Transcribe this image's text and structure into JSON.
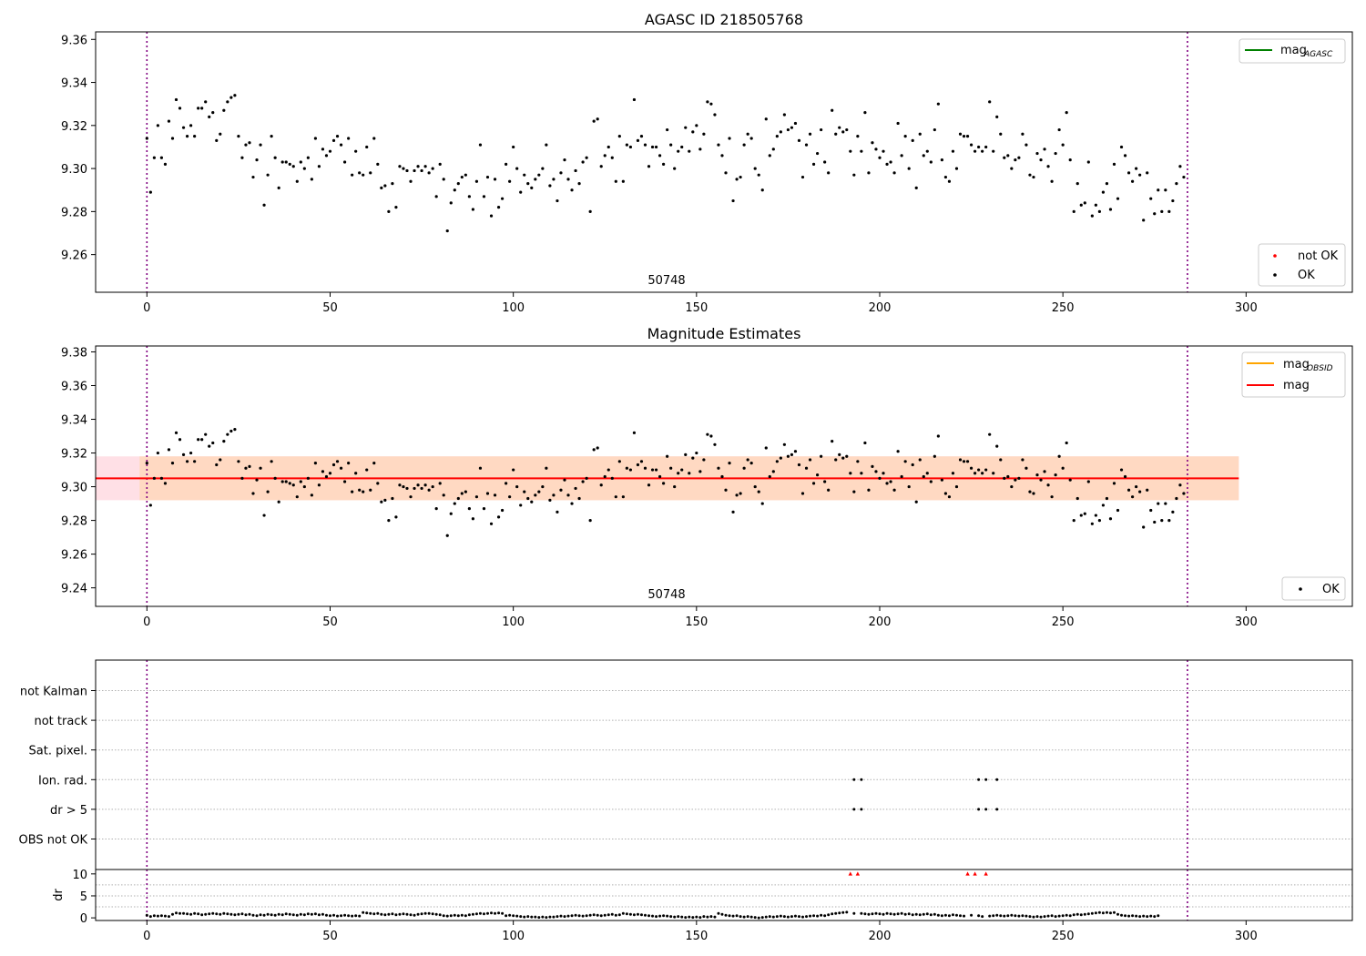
{
  "chart_data": [
    {
      "type": "scatter",
      "title": "AGASC ID 218505768",
      "xlim": [
        -14,
        329
      ],
      "ylim": [
        9.2425,
        9.3635
      ],
      "xticks": [
        0,
        50,
        100,
        150,
        200,
        250,
        300
      ],
      "yticks": [
        9.26,
        9.28,
        9.3,
        9.32,
        9.34,
        9.36
      ],
      "annotation": "50748",
      "vlines": [
        0,
        284
      ],
      "legend_lines": [
        {
          "label": "mag",
          "subscript": "AGASC",
          "color": "#008000"
        }
      ],
      "legend_points": [
        {
          "label": "not OK",
          "color": "#ff0000"
        },
        {
          "label": "OK",
          "color": "#000000"
        }
      ],
      "series": [
        {
          "key": "mag_points",
          "values": [
            9.314,
            9.289,
            9.305,
            9.32,
            9.305,
            9.302,
            9.322,
            9.314,
            9.332,
            9.328,
            9.319,
            9.315,
            9.32,
            9.315,
            9.328,
            9.328,
            9.331,
            9.324,
            9.326,
            9.313,
            9.316,
            9.327,
            9.331,
            9.333,
            9.334,
            9.315,
            9.305,
            9.311,
            9.312,
            9.296,
            9.304,
            9.311,
            9.283,
            9.297,
            9.315,
            9.305,
            9.291,
            9.303,
            9.303,
            9.302,
            9.301,
            9.294,
            9.303,
            9.3,
            9.305,
            9.295,
            9.314,
            9.301,
            9.309,
            9.306,
            9.308,
            9.313,
            9.315,
            9.311,
            9.303,
            9.314,
            9.297,
            9.308,
            9.298,
            9.297,
            9.31,
            9.298,
            9.314,
            9.302,
            9.291,
            9.292,
            9.28,
            9.293,
            9.282,
            9.301,
            9.3,
            9.299,
            9.294,
            9.299,
            9.301,
            9.299,
            9.301,
            9.298,
            9.3,
            9.287,
            9.302,
            9.295,
            9.271,
            9.284,
            9.29,
            9.293,
            9.296,
            9.297,
            9.287,
            9.281,
            9.294,
            9.311,
            9.287,
            9.296,
            9.278,
            9.295,
            9.282,
            9.286,
            9.302,
            9.294,
            9.31,
            9.3,
            9.289,
            9.297,
            9.293,
            9.291,
            9.295,
            9.297,
            9.3,
            9.311,
            9.292,
            9.295,
            9.285,
            9.298,
            9.304,
            9.295,
            9.29,
            9.299,
            9.293,
            9.303,
            9.305,
            9.28,
            9.322,
            9.323,
            9.301,
            9.306,
            9.31,
            9.305,
            9.294,
            9.315,
            9.294,
            9.311,
            9.31,
            9.332,
            9.313,
            9.315,
            9.311,
            9.301,
            9.31,
            9.31,
            9.306,
            9.302,
            9.318,
            9.311,
            9.3,
            9.308,
            9.31,
            9.319,
            9.308,
            9.317,
            9.32,
            9.309,
            9.316,
            9.331,
            9.33,
            9.325,
            9.311,
            9.306,
            9.298,
            9.314,
            9.285,
            9.295,
            9.296,
            9.311,
            9.316,
            9.314,
            9.3,
            9.297,
            9.29,
            9.323,
            9.306,
            9.309,
            9.315,
            9.317,
            9.325,
            9.318,
            9.319,
            9.321,
            9.313,
            9.296,
            9.311,
            9.316,
            9.302,
            9.307,
            9.318,
            9.303,
            9.298,
            9.327,
            9.316,
            9.319,
            9.317,
            9.318,
            9.308,
            9.297,
            9.315,
            9.308,
            9.326,
            9.298,
            9.312,
            9.309,
            9.305,
            9.308,
            9.302,
            9.303,
            9.298,
            9.321,
            9.306,
            9.315,
            9.3,
            9.313,
            9.291,
            9.316,
            9.306,
            9.308,
            9.303,
            9.318,
            9.33,
            9.304,
            9.296,
            9.294,
            9.308,
            9.3,
            9.316,
            9.315,
            9.315,
            9.311,
            9.308,
            9.31,
            9.308,
            9.31,
            9.331,
            9.308,
            9.324,
            9.316,
            9.305,
            9.306,
            9.3,
            9.304,
            9.305,
            9.316,
            9.311,
            9.297,
            9.296,
            9.307,
            9.304,
            9.309,
            9.301,
            9.294,
            9.307,
            9.318,
            9.311,
            9.326,
            9.304,
            9.28,
            9.293,
            9.283,
            9.284,
            9.303,
            9.278,
            9.283,
            9.28,
            9.289,
            9.293,
            9.281,
            9.302,
            9.286,
            9.31,
            9.306,
            9.298,
            9.294,
            9.3,
            9.297,
            9.276,
            9.298,
            9.286,
            9.279,
            9.29,
            9.28,
            9.29,
            9.28,
            9.285,
            9.293,
            9.301,
            9.296
          ]
        }
      ]
    },
    {
      "type": "scatter",
      "title": "Magnitude Estimates",
      "xlim": [
        -14,
        329
      ],
      "ylim": [
        9.229,
        9.3835
      ],
      "xticks": [
        0,
        50,
        100,
        150,
        200,
        250,
        300
      ],
      "yticks": [
        9.24,
        9.26,
        9.28,
        9.3,
        9.32,
        9.34,
        9.36,
        9.38
      ],
      "annotation": "50748",
      "vlines": [
        0,
        284
      ],
      "mean_mag": 9.305,
      "bands": [
        {
          "x": [
            -14,
            298
          ],
          "y": [
            9.292,
            9.318
          ],
          "color": "#ffe0e6"
        },
        {
          "x": [
            -2,
            298
          ],
          "y": [
            9.292,
            9.318
          ],
          "color": "#ffd9c2"
        }
      ],
      "legend_lines": [
        {
          "label": "mag",
          "subscript": "OBSID",
          "color": "#ffa500"
        },
        {
          "label": "mag",
          "subscript": "",
          "color": "#ff0000"
        }
      ],
      "legend_points": [
        {
          "label": "OK",
          "color": "#000000"
        }
      ]
    },
    {
      "type": "scatter",
      "categories": [
        "not Kalman",
        "not track",
        "Sat. pixel.",
        "Ion. rad.",
        "dr > 5",
        "OBS not OK"
      ],
      "xlim": [
        -14,
        329
      ],
      "xticks": [
        0,
        50,
        100,
        150,
        200,
        250,
        300
      ],
      "vlines": [
        0,
        284
      ],
      "flags": {
        "Ion. rad.": [
          193,
          195,
          227,
          229,
          232
        ],
        "dr > 5": [
          193,
          195,
          227,
          229,
          232
        ]
      }
    },
    {
      "type": "scatter",
      "ylabel": "dr",
      "xlim": [
        -14,
        329
      ],
      "ylim": [
        -0.6,
        11
      ],
      "xticks": [
        0,
        50,
        100,
        150,
        200,
        250,
        300
      ],
      "yticks": [
        0,
        5,
        10
      ],
      "vlines": [
        0,
        284
      ],
      "dr_values": [
        0.6,
        0.3,
        0.5,
        0.4,
        0.5,
        0.4,
        0.3,
        0.8,
        1.1,
        1.0,
        1.0,
        0.9,
        0.8,
        1.0,
        0.9,
        0.7,
        0.8,
        0.9,
        1.0,
        0.9,
        0.8,
        1.0,
        0.9,
        0.8,
        0.7,
        0.8,
        0.9,
        0.7,
        0.8,
        0.6,
        0.5,
        0.7,
        0.6,
        0.8,
        0.7,
        0.6,
        0.8,
        0.7,
        0.9,
        0.8,
        0.7,
        0.6,
        0.8,
        0.7,
        0.9,
        0.8,
        0.9,
        0.7,
        0.8,
        0.6,
        0.5,
        0.6,
        0.4,
        0.5,
        0.6,
        0.5,
        0.4,
        0.5,
        0.4,
        1.2,
        1.1,
        1.0,
        0.9,
        1.0,
        0.8,
        0.7,
        0.8,
        0.9,
        0.7,
        0.8,
        0.9,
        0.8,
        0.7,
        0.6,
        0.8,
        0.9,
        1.0,
        1.0,
        0.9,
        0.8,
        0.7,
        0.5,
        0.4,
        0.5,
        0.6,
        0.5,
        0.6,
        0.5,
        0.7,
        0.8,
        0.9,
        1.0,
        0.9,
        1.0,
        1.1,
        1.0,
        1.1,
        1.0,
        0.5,
        0.6,
        0.5,
        0.4,
        0.3,
        0.2,
        0.3,
        0.2,
        0.2,
        0.1,
        0.2,
        0.1,
        0.2,
        0.2,
        0.3,
        0.4,
        0.3,
        0.4,
        0.5,
        0.6,
        0.5,
        0.4,
        0.5,
        0.6,
        0.7,
        0.6,
        0.5,
        0.6,
        0.7,
        0.8,
        0.6,
        0.7,
        1.0,
        0.9,
        0.8,
        0.7,
        0.8,
        0.7,
        0.6,
        0.5,
        0.4,
        0.3,
        0.4,
        0.5,
        0.4,
        0.3,
        0.2,
        0.3,
        0.2,
        0.1,
        0.2,
        0.1,
        0.2,
        0.1,
        0.3,
        0.2,
        0.3,
        0.2,
        1.0,
        0.8,
        0.6,
        0.5,
        0.4,
        0.5,
        0.3,
        0.2,
        0.3,
        0.2,
        0.1,
        0.0,
        0.1,
        0.2,
        0.3,
        0.2,
        0.3,
        0.4,
        0.3,
        0.2,
        0.3,
        0.4,
        0.3,
        0.2,
        0.3,
        0.4,
        0.5,
        0.4,
        0.6,
        0.5,
        0.7,
        0.9,
        1.0,
        1.1,
        1.2,
        1.3,
        10.0,
        1.0,
        10.0,
        1.0,
        0.9,
        0.8,
        0.9,
        1.0,
        0.9,
        0.8,
        1.0,
        0.9,
        0.8,
        0.9,
        1.0,
        0.8,
        0.9,
        0.7,
        0.8,
        0.7,
        0.8,
        0.9,
        0.7,
        0.8,
        0.6,
        0.5,
        0.6,
        0.5,
        0.7,
        0.6,
        0.5,
        0.4,
        10.0,
        0.6,
        10.0,
        0.5,
        0.3,
        10.0,
        0.4,
        0.5,
        0.6,
        0.5,
        0.4,
        0.5,
        0.6,
        0.5,
        0.4,
        0.5,
        0.4,
        0.3,
        0.2,
        0.3,
        0.2,
        0.3,
        0.4,
        0.5,
        0.3,
        0.4,
        0.5,
        0.6,
        0.5,
        0.7,
        0.8,
        0.7,
        0.8,
        0.9,
        1.0,
        1.1,
        1.2,
        1.1,
        1.2,
        1.1,
        1.2,
        0.8,
        0.6,
        0.5,
        0.4,
        0.5,
        0.4,
        0.3,
        0.4,
        0.3,
        0.4,
        0.3,
        0.5
      ],
      "not_ok_color": "#ff0000"
    }
  ]
}
